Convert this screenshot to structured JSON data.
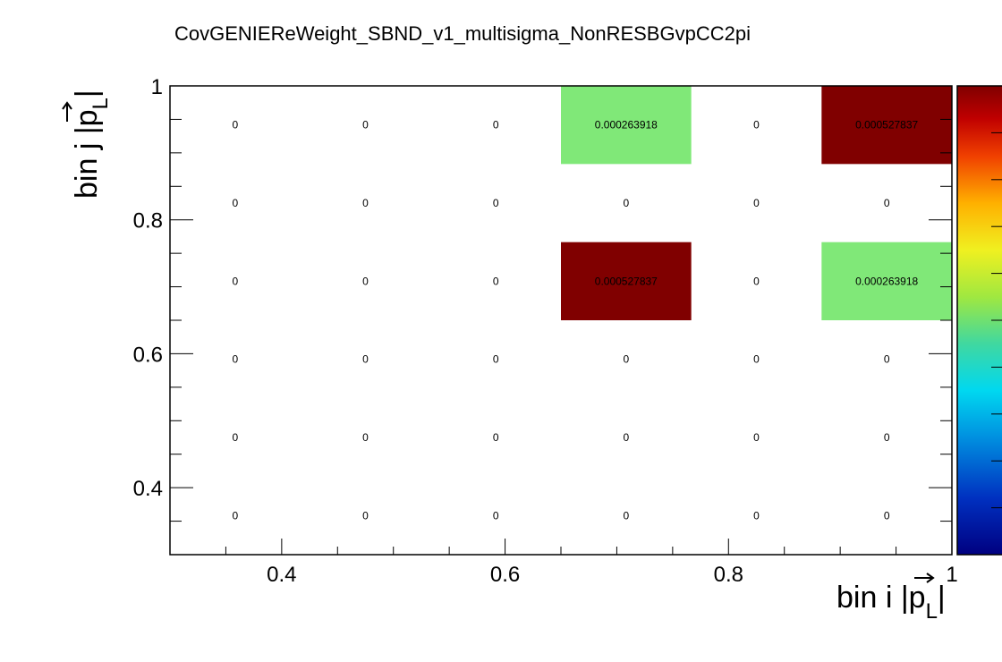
{
  "chart_data": {
    "type": "heatmap",
    "title": "CovGENIEReWeight_SBND_v1_multisigma_NonRESBGvpCC2pi",
    "xlabel": "bin i |p_L|",
    "ylabel": "bin j |p_L|",
    "xlim": [
      0.3,
      1.0
    ],
    "ylim": [
      0.3,
      1.0
    ],
    "x_bin_edges": [
      0.3,
      0.41667,
      0.53333,
      0.65,
      0.76667,
      0.88333,
      1.0
    ],
    "y_bin_edges": [
      0.3,
      0.41667,
      0.53333,
      0.65,
      0.76667,
      0.88333,
      1.0
    ],
    "x_ticks": [
      {
        "value": 0.4,
        "label": "0.4"
      },
      {
        "value": 0.6,
        "label": "0.6"
      },
      {
        "value": 0.8,
        "label": "0.8"
      },
      {
        "value": 1.0,
        "label": "1"
      }
    ],
    "y_ticks": [
      {
        "value": 0.4,
        "label": "0.4"
      },
      {
        "value": 0.6,
        "label": "0.6"
      },
      {
        "value": 0.8,
        "label": "0.8"
      },
      {
        "value": 1.0,
        "label": "1"
      }
    ],
    "zlim": [
      0,
      0.000527837
    ],
    "cells": [
      [
        "0",
        "0",
        "0",
        "0",
        "0",
        "0"
      ],
      [
        "0",
        "0",
        "0",
        "0",
        "0",
        "0"
      ],
      [
        "0",
        "0",
        "0",
        "0",
        "0",
        "0"
      ],
      [
        "0",
        "0",
        "0",
        "0.000527837",
        "0",
        "0.000263918"
      ],
      [
        "0",
        "0",
        "0",
        "0",
        "0",
        "0"
      ],
      [
        "0",
        "0",
        "0",
        "0.000263918",
        "0",
        "0.000527837"
      ]
    ],
    "colormap": "rainbow",
    "colors": {
      "high": "#800000",
      "mid": "#80e878"
    },
    "grid": false,
    "legend": "colorbar-right"
  }
}
